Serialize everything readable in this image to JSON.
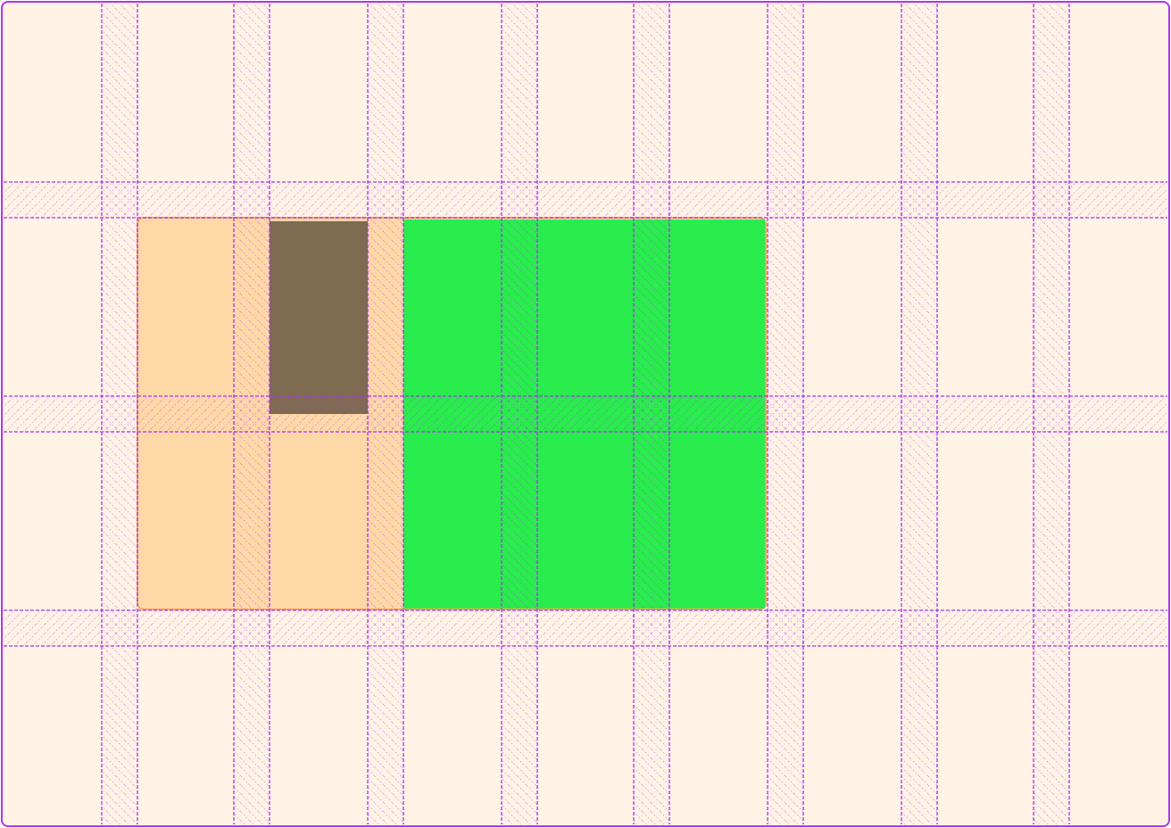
{
  "colors": {
    "container_background": "#fff3e5",
    "container_border": "#b032ee",
    "grid_overlay": "#a833f0",
    "item_orange_fill": "#ffd8a8",
    "item_orange_border": "#ffa64d",
    "item_brown_fill": "#7f6a52",
    "item_green_fill": "#29ec4d"
  },
  "grid_overlay": {
    "columns": 9,
    "rows": 4,
    "line_style": "dashed",
    "gap_fill": "hatched"
  }
}
